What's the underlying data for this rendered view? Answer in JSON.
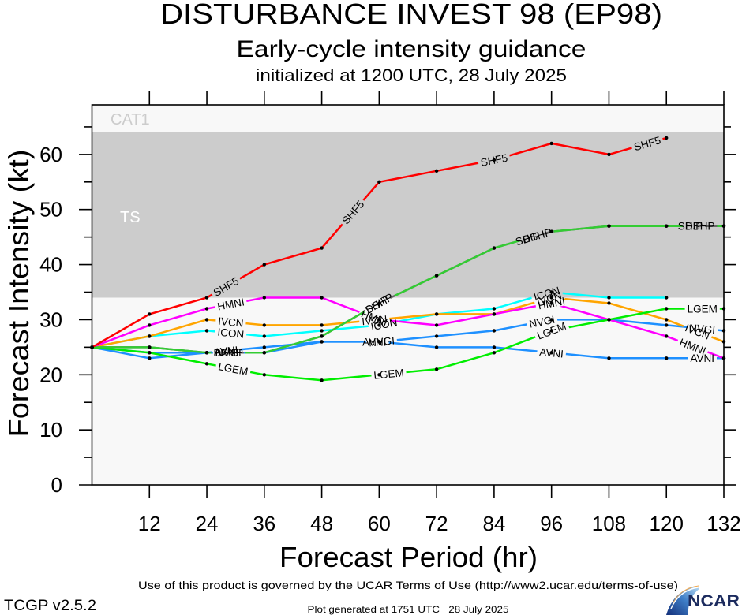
{
  "header": {
    "title": "DISTURBANCE INVEST 98 (EP98)",
    "subtitle": "Early-cycle intensity guidance",
    "initialized": "initialized at 1200 UTC, 28 July 2025"
  },
  "footer": {
    "terms": "Use of this product is governed by the UCAR Terms of Use (http://www2.ucar.edu/terms-of-use)",
    "version": "TCGP v2.5.2",
    "generated": "Plot generated at 1751 UTC   28 July 2025",
    "logo": {
      "text": "NCAR",
      "icon": "ncar-swoosh-logo",
      "color": "#1c2b5e"
    }
  },
  "chart_data": {
    "type": "line",
    "title": "DISTURBANCE INVEST 98 (EP98)",
    "subtitle": "Early-cycle intensity guidance",
    "annotation": "initialized at 1200 UTC, 28 July 2025",
    "xlabel": "Forecast Period (hr)",
    "ylabel": "Forecast Intensity (kt)",
    "xlim": [
      0,
      132
    ],
    "ylim": [
      0,
      69
    ],
    "xticks": [
      12,
      24,
      36,
      48,
      60,
      72,
      84,
      96,
      108,
      120,
      132
    ],
    "yticks": [
      0,
      10,
      20,
      30,
      40,
      50,
      60
    ],
    "grid": false,
    "legend": "inline labels on lines",
    "background_color": "#f8f8f8",
    "point_marker_color": "#000000",
    "bands": [
      {
        "label": "TS",
        "min": 34,
        "max": 64,
        "color": "#cccccc",
        "label_color": "#ffffff"
      },
      {
        "label": "CAT1",
        "min": 64,
        "max": null,
        "color": "#f8f8f8",
        "label_color": "#cccccc"
      }
    ],
    "x": [
      0,
      12,
      24,
      36,
      48,
      60,
      72,
      84,
      96,
      108,
      120,
      132
    ],
    "series": [
      {
        "name": "SHIP",
        "color": "#666666",
        "values": [
          25,
          25,
          24,
          24,
          27,
          33,
          38,
          43,
          46,
          47,
          47,
          47
        ]
      },
      {
        "name": "AVNI",
        "color": "#1e90ff",
        "values": [
          25,
          24,
          24,
          25,
          26,
          26,
          25,
          25,
          24,
          23,
          23,
          23
        ]
      },
      {
        "name": "NVGI",
        "color": "#1e90ff",
        "values": [
          25,
          23,
          24,
          24,
          26,
          26,
          27,
          28,
          30,
          30,
          29,
          28
        ]
      },
      {
        "name": "ICON",
        "color": "#00ffff",
        "values": [
          25,
          27,
          28,
          27,
          28,
          29,
          31,
          32,
          35,
          34,
          34,
          null
        ]
      },
      {
        "name": "IVCN",
        "color": "#ffa500",
        "values": [
          25,
          27,
          30,
          29,
          29,
          30,
          31,
          31,
          34,
          33,
          30,
          26
        ]
      },
      {
        "name": "HMNI",
        "color": "#ff00ff",
        "values": [
          25,
          29,
          32,
          34,
          34,
          30,
          29,
          31,
          33,
          30,
          27,
          23
        ]
      },
      {
        "name": "LGEM",
        "color": "#00ee00",
        "values": [
          25,
          24,
          22,
          20,
          19,
          20,
          21,
          24,
          28,
          30,
          32,
          32
        ]
      },
      {
        "name": "DSHP",
        "color": "#33cc33",
        "values": [
          25,
          25,
          24,
          24,
          27,
          33,
          38,
          43,
          46,
          47,
          47,
          47
        ]
      },
      {
        "name": "SHF5",
        "color": "#ff0000",
        "values": [
          25,
          31,
          34,
          40,
          43,
          55,
          57,
          59,
          62,
          60,
          63,
          null
        ]
      }
    ]
  }
}
